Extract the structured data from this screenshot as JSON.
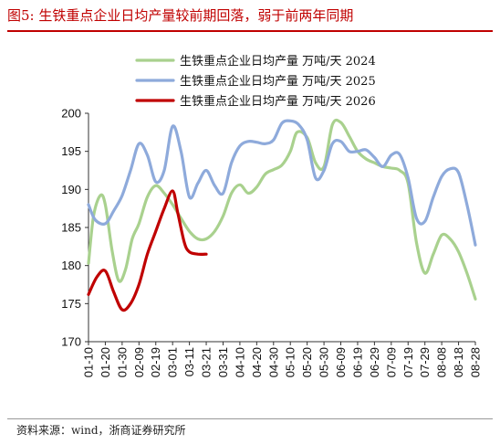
{
  "figure": {
    "title": "图5:  生铁重点企业日均产量较前期回落，弱于前两年同期",
    "source": "资料来源：wind，浙商证券研究所"
  },
  "chart_data": {
    "type": "line",
    "x_ticks": [
      "01-10",
      "01-20",
      "01-30",
      "02-09",
      "02-19",
      "03-01",
      "03-11",
      "03-21",
      "03-31",
      "04-10",
      "04-20",
      "04-30",
      "05-10",
      "05-20",
      "05-30",
      "06-09",
      "06-19",
      "06-29",
      "07-09",
      "07-19",
      "07-29",
      "08-08",
      "08-18",
      "08-28"
    ],
    "ylim": [
      170,
      200
    ],
    "yticks": [
      170,
      175,
      180,
      185,
      190,
      195,
      200
    ],
    "legend_position": "top-right",
    "grid": false,
    "series": [
      {
        "name": "生铁重点企业日均产量  万吨/天  2024",
        "color": "#a9d18e",
        "points": [
          [
            "01-10",
            180.3
          ],
          [
            "01-13",
            186.5
          ],
          [
            "01-17",
            189.2
          ],
          [
            "01-20",
            188.0
          ],
          [
            "01-24",
            182.0
          ],
          [
            "01-28",
            178.0
          ],
          [
            "02-01",
            179.5
          ],
          [
            "02-05",
            183.5
          ],
          [
            "02-09",
            185.5
          ],
          [
            "02-14",
            189.0
          ],
          [
            "02-19",
            190.5
          ],
          [
            "02-24",
            189.5
          ],
          [
            "03-01",
            188.0
          ],
          [
            "03-06",
            186.2
          ],
          [
            "03-11",
            184.5
          ],
          [
            "03-16",
            183.5
          ],
          [
            "03-21",
            183.5
          ],
          [
            "03-26",
            184.5
          ],
          [
            "03-31",
            186.5
          ],
          [
            "04-05",
            189.5
          ],
          [
            "04-10",
            190.6
          ],
          [
            "04-15",
            189.5
          ],
          [
            "04-20",
            190.3
          ],
          [
            "04-25",
            192.0
          ],
          [
            "04-30",
            192.6
          ],
          [
            "05-05",
            193.2
          ],
          [
            "05-10",
            195.0
          ],
          [
            "05-14",
            197.5
          ],
          [
            "05-20",
            196.8
          ],
          [
            "05-25",
            193.5
          ],
          [
            "05-30",
            193.0
          ],
          [
            "06-04",
            198.5
          ],
          [
            "06-09",
            198.8
          ],
          [
            "06-14",
            197.0
          ],
          [
            "06-19",
            195.0
          ],
          [
            "06-24",
            194.0
          ],
          [
            "06-29",
            193.5
          ],
          [
            "07-04",
            193.0
          ],
          [
            "07-09",
            192.8
          ],
          [
            "07-14",
            192.5
          ],
          [
            "07-19",
            190.8
          ],
          [
            "07-24",
            183.0
          ],
          [
            "07-29",
            179.0
          ],
          [
            "08-03",
            181.5
          ],
          [
            "08-08",
            184.0
          ],
          [
            "08-13",
            183.5
          ],
          [
            "08-18",
            181.8
          ],
          [
            "08-23",
            179.0
          ],
          [
            "08-28",
            175.6
          ]
        ]
      },
      {
        "name": "生铁重点企业日均产量  万吨/天  2025",
        "color": "#8eaadb",
        "points": [
          [
            "01-10",
            188.0
          ],
          [
            "01-14",
            186.0
          ],
          [
            "01-20",
            185.5
          ],
          [
            "01-25",
            187.2
          ],
          [
            "01-30",
            189.2
          ],
          [
            "02-04",
            192.5
          ],
          [
            "02-09",
            196.0
          ],
          [
            "02-14",
            194.5
          ],
          [
            "02-19",
            191.0
          ],
          [
            "02-24",
            192.5
          ],
          [
            "03-01",
            198.3
          ],
          [
            "03-06",
            195.0
          ],
          [
            "03-11",
            189.0
          ],
          [
            "03-16",
            190.8
          ],
          [
            "03-21",
            192.5
          ],
          [
            "03-26",
            190.5
          ],
          [
            "03-31",
            189.5
          ],
          [
            "04-05",
            193.5
          ],
          [
            "04-10",
            195.7
          ],
          [
            "04-15",
            196.3
          ],
          [
            "04-20",
            196.2
          ],
          [
            "04-25",
            196.0
          ],
          [
            "04-30",
            196.5
          ],
          [
            "05-05",
            198.7
          ],
          [
            "05-10",
            199.0
          ],
          [
            "05-15",
            198.5
          ],
          [
            "05-20",
            196.5
          ],
          [
            "05-25",
            191.5
          ],
          [
            "05-30",
            192.5
          ],
          [
            "06-04",
            196.0
          ],
          [
            "06-09",
            196.3
          ],
          [
            "06-14",
            195.0
          ],
          [
            "06-19",
            195.0
          ],
          [
            "06-24",
            195.2
          ],
          [
            "06-29",
            194.2
          ],
          [
            "07-04",
            193.0
          ],
          [
            "07-09",
            194.5
          ],
          [
            "07-14",
            194.6
          ],
          [
            "07-19",
            191.5
          ],
          [
            "07-24",
            186.2
          ],
          [
            "07-29",
            185.8
          ],
          [
            "08-03",
            189.0
          ],
          [
            "08-08",
            191.7
          ],
          [
            "08-13",
            192.7
          ],
          [
            "08-18",
            192.2
          ],
          [
            "08-23",
            188.0
          ],
          [
            "08-28",
            182.7
          ]
        ]
      },
      {
        "name": "生铁重点企业日均产量  万吨/天  2026",
        "color": "#c00000",
        "points": [
          [
            "01-10",
            176.2
          ],
          [
            "01-15",
            178.5
          ],
          [
            "01-20",
            179.3
          ],
          [
            "01-25",
            176.5
          ],
          [
            "01-30",
            174.2
          ],
          [
            "02-04",
            175.0
          ],
          [
            "02-09",
            177.5
          ],
          [
            "02-14",
            181.5
          ],
          [
            "02-19",
            184.5
          ],
          [
            "02-24",
            187.5
          ],
          [
            "03-01",
            189.8
          ],
          [
            "03-04",
            187.0
          ],
          [
            "03-08",
            183.0
          ],
          [
            "03-11",
            181.8
          ],
          [
            "03-16",
            181.5
          ],
          [
            "03-21",
            181.5
          ]
        ]
      }
    ]
  }
}
